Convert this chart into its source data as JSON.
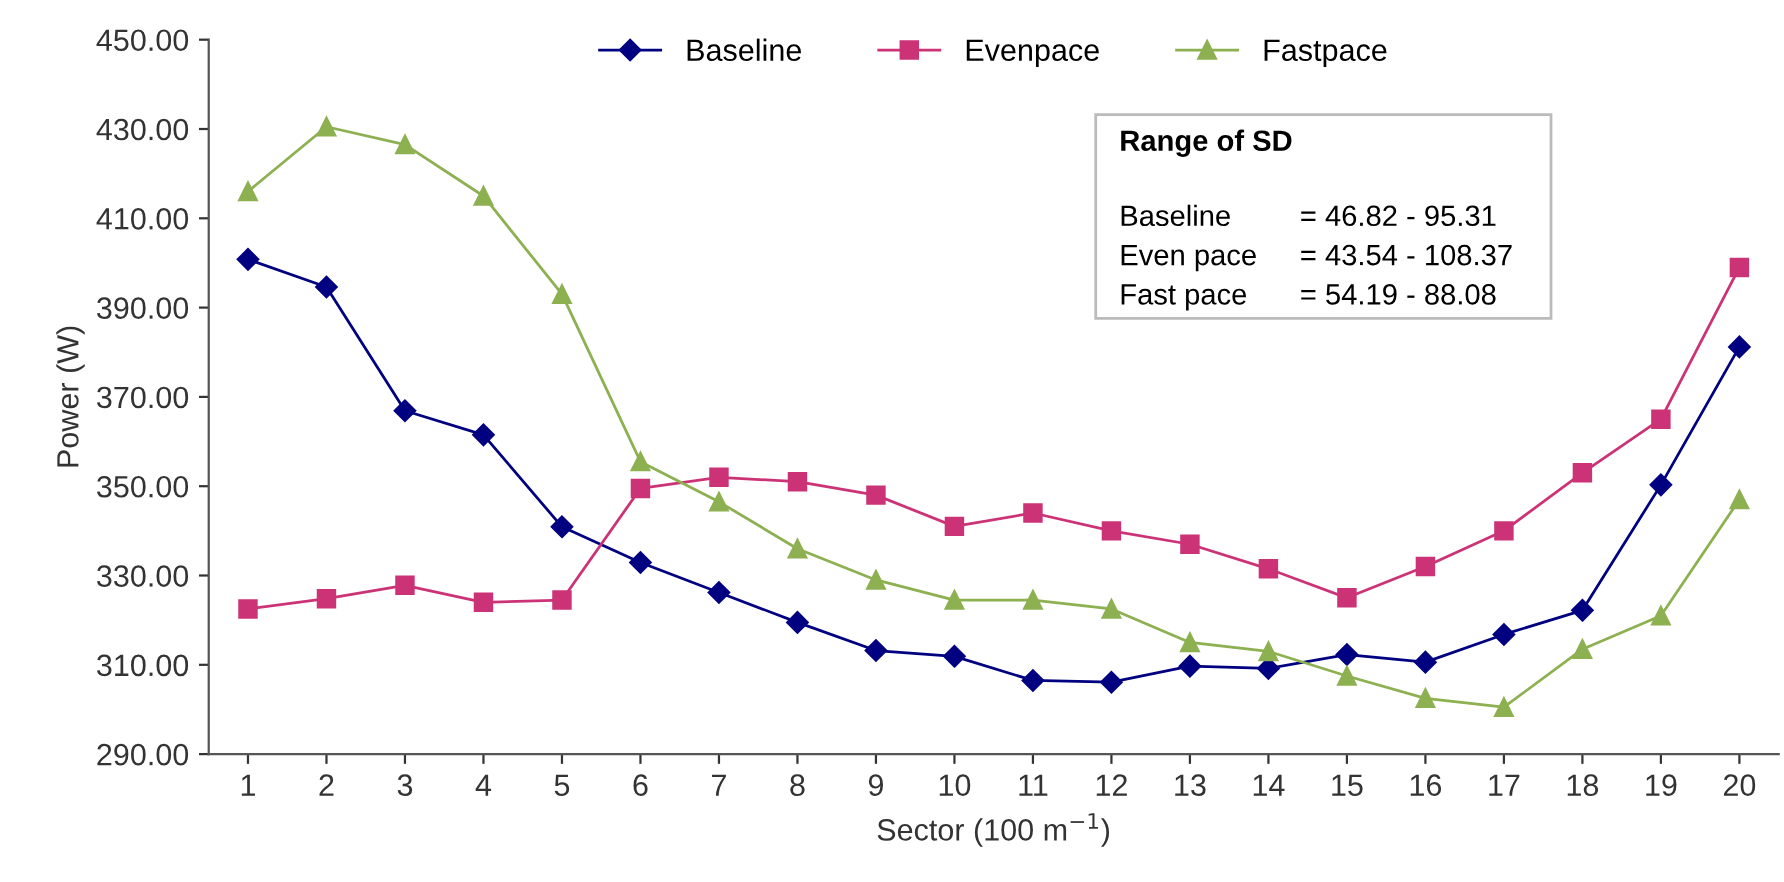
{
  "chart_data": {
    "type": "line",
    "xlabel": "Sector (100 m$^{−1}$)",
    "ylabel": "Power (W)",
    "categories": [
      "1",
      "2",
      "3",
      "4",
      "5",
      "6",
      "7",
      "8",
      "9",
      "10",
      "11",
      "12",
      "13",
      "14",
      "15",
      "16",
      "17",
      "18",
      "19",
      "20"
    ],
    "series": [
      {
        "name": "Baseline",
        "color": "#000080",
        "marker": "diamond",
        "values": [
          400.8,
          394.6,
          366.9,
          361.5,
          340.9,
          332.9,
          326.2,
          319.5,
          313.2,
          311.9,
          306.5,
          306.1,
          309.7,
          309.2,
          312.3,
          310.6,
          316.8,
          322.2,
          350.3,
          381.2
        ]
      },
      {
        "name": "Evenpace",
        "color": "#cc3377",
        "marker": "square",
        "values": [
          322.5,
          324.8,
          327.8,
          324.0,
          324.5,
          349.5,
          352.0,
          351.0,
          348.0,
          341.0,
          344.0,
          340.0,
          337.0,
          331.5,
          325.0,
          332.0,
          340.0,
          353.0,
          365.0,
          399.0
        ]
      },
      {
        "name": "Fastpace",
        "color": "#8db050",
        "marker": "triangle",
        "values": [
          416.0,
          430.5,
          426.5,
          415.0,
          393.0,
          355.5,
          346.5,
          336.0,
          329.0,
          324.5,
          324.5,
          322.5,
          315.0,
          313.0,
          307.5,
          302.5,
          300.5,
          313.5,
          321.0,
          347.0
        ]
      }
    ],
    "ylim": [
      290,
      450
    ],
    "yticks": [
      {
        "value": 290,
        "label": "290.00"
      },
      {
        "value": 310,
        "label": "310.00"
      },
      {
        "value": 330,
        "label": "330.00"
      },
      {
        "value": 350,
        "label": "350.00"
      },
      {
        "value": 370,
        "label": "370.00"
      },
      {
        "value": 390,
        "label": "390.00"
      },
      {
        "value": 410,
        "label": "410.00"
      },
      {
        "value": 430,
        "label": "430.00"
      },
      {
        "value": 450,
        "label": "450.00"
      }
    ],
    "annotations": [
      "Range of SD",
      "Baseline",
      "= 46.82 - 95.31",
      "Even pace",
      "= 43.54 - 108.37",
      "Fast pace",
      "= 54.19 - 88.08"
    ],
    "legend": "top",
    "grid": false,
    "line_style": "solid"
  }
}
